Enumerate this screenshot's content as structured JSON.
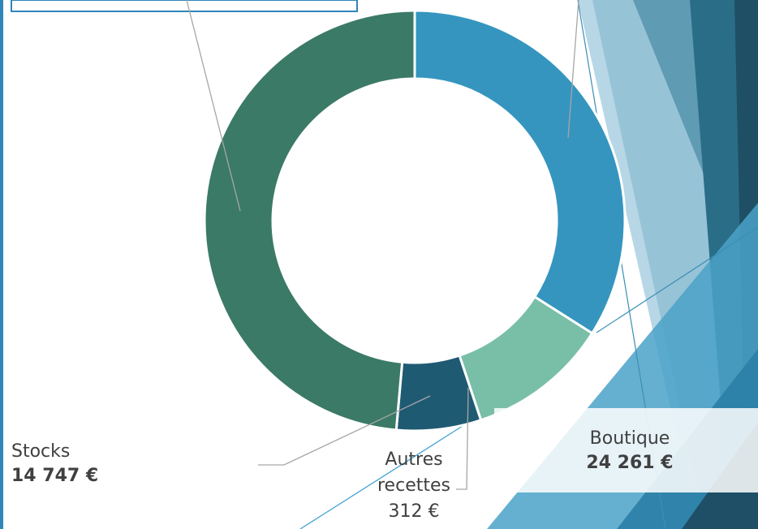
{
  "chart_data": {
    "type": "pie",
    "donut": true,
    "values": [
      34,
      10.9,
      6.5,
      48.6
    ],
    "colors": [
      "#3595bf",
      "#79bfa8",
      "#1f5a73",
      "#3b7a66"
    ],
    "annotations": [
      {
        "name": "Stocks",
        "amount": "14 747 €"
      },
      {
        "name": "Autres recettes",
        "amount": "312 €"
      },
      {
        "name": "Boutique",
        "amount": "24 261 €"
      }
    ]
  }
}
